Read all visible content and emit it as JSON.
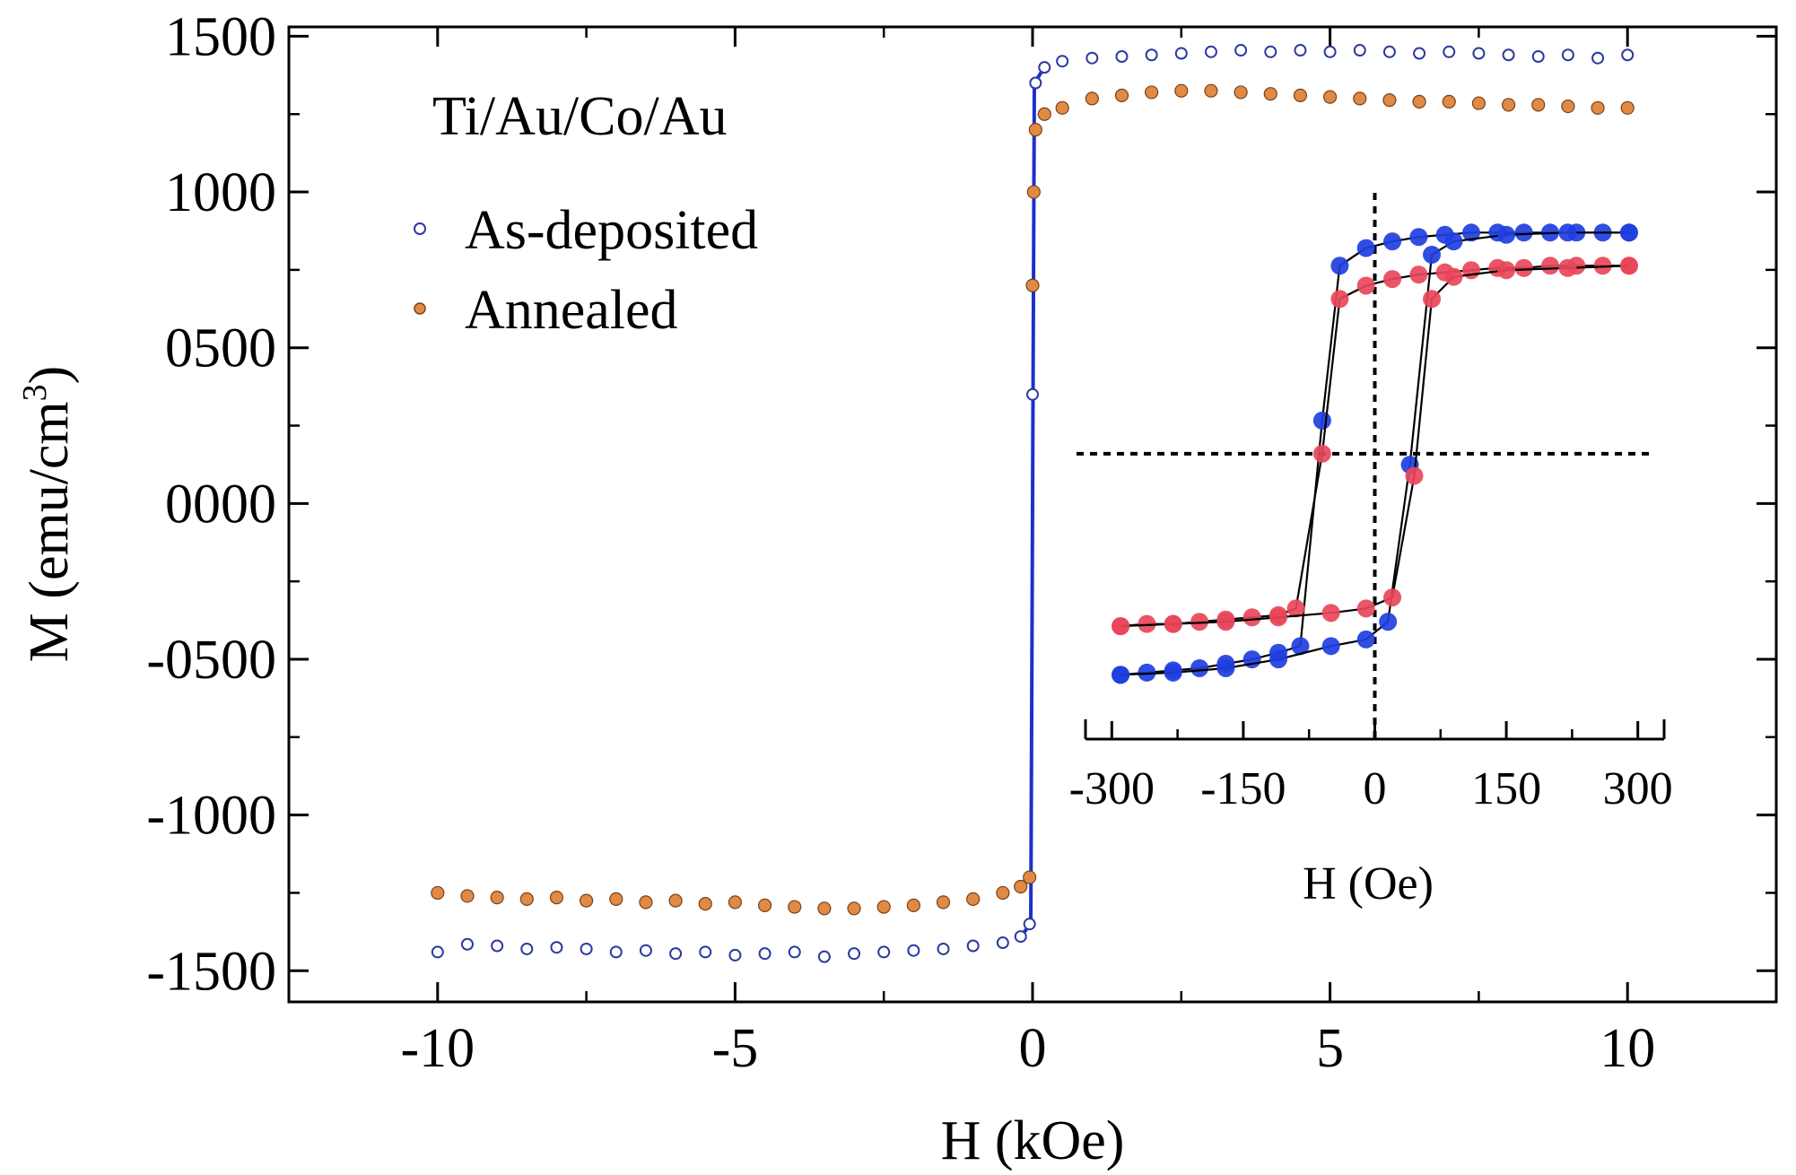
{
  "chart_data": {
    "type": "scatter",
    "xlabel": "H (kOe)",
    "ylabel_main": "M (emu/cm",
    "ylabel_sup": "3",
    "ylabel_close": ")",
    "xlim": [
      -12.5,
      12.5
    ],
    "ylim": [
      -1600,
      1530
    ],
    "x_ticks": [
      -10,
      -5,
      0,
      5,
      10
    ],
    "x_tick_labels": [
      "-10",
      "-5",
      "0",
      "5",
      "10"
    ],
    "y_ticks": [
      1500,
      1000,
      500,
      0,
      -500,
      -1000,
      -1500
    ],
    "y_tick_labels": [
      "1500",
      "1000",
      "0500",
      "0000",
      "-0500",
      "-1000",
      "-1500"
    ],
    "legend": {
      "title": "Ti/Au/Co/Au",
      "placement": "top-left"
    },
    "series": [
      {
        "name": "As-deposited",
        "marker": "open-circle",
        "color": "#2c3a9e",
        "line_color": "#1c2fcf",
        "points": [
          [
            -10,
            -1440
          ],
          [
            -9.5,
            -1415
          ],
          [
            -9,
            -1420
          ],
          [
            -8.5,
            -1430
          ],
          [
            -8,
            -1425
          ],
          [
            -7.5,
            -1430
          ],
          [
            -7,
            -1440
          ],
          [
            -6.5,
            -1435
          ],
          [
            -6,
            -1445
          ],
          [
            -5.5,
            -1440
          ],
          [
            -5,
            -1450
          ],
          [
            -4.5,
            -1445
          ],
          [
            -4,
            -1440
          ],
          [
            -3.5,
            -1455
          ],
          [
            -3,
            -1445
          ],
          [
            -2.5,
            -1440
          ],
          [
            -2,
            -1435
          ],
          [
            -1.5,
            -1430
          ],
          [
            -1,
            -1420
          ],
          [
            -0.5,
            -1410
          ],
          [
            -0.2,
            -1390
          ],
          [
            -0.05,
            -1350
          ],
          [
            0,
            350
          ],
          [
            0.05,
            1350
          ],
          [
            0.2,
            1400
          ],
          [
            0.5,
            1420
          ],
          [
            1,
            1430
          ],
          [
            1.5,
            1435
          ],
          [
            2,
            1440
          ],
          [
            2.5,
            1445
          ],
          [
            3,
            1450
          ],
          [
            3.5,
            1455
          ],
          [
            4,
            1450
          ],
          [
            4.5,
            1455
          ],
          [
            5,
            1450
          ],
          [
            5.5,
            1455
          ],
          [
            6,
            1450
          ],
          [
            6.5,
            1445
          ],
          [
            7,
            1450
          ],
          [
            7.5,
            1445
          ],
          [
            8,
            1440
          ],
          [
            8.5,
            1435
          ],
          [
            9,
            1440
          ],
          [
            9.5,
            1430
          ],
          [
            10,
            1440
          ]
        ]
      },
      {
        "name": "Annealed",
        "marker": "filled-circle",
        "color": "#e08a45",
        "points": [
          [
            -10,
            -1250
          ],
          [
            -9.5,
            -1260
          ],
          [
            -9,
            -1265
          ],
          [
            -8.5,
            -1270
          ],
          [
            -8,
            -1265
          ],
          [
            -7.5,
            -1275
          ],
          [
            -7,
            -1270
          ],
          [
            -6.5,
            -1280
          ],
          [
            -6,
            -1275
          ],
          [
            -5.5,
            -1285
          ],
          [
            -5,
            -1280
          ],
          [
            -4.5,
            -1290
          ],
          [
            -4,
            -1295
          ],
          [
            -3.5,
            -1300
          ],
          [
            -3,
            -1300
          ],
          [
            -2.5,
            -1295
          ],
          [
            -2,
            -1290
          ],
          [
            -1.5,
            -1280
          ],
          [
            -1,
            -1270
          ],
          [
            -0.5,
            -1250
          ],
          [
            -0.2,
            -1230
          ],
          [
            -0.05,
            -1200
          ],
          [
            0,
            700
          ],
          [
            0.02,
            1000
          ],
          [
            0.05,
            1200
          ],
          [
            0.2,
            1250
          ],
          [
            0.5,
            1270
          ],
          [
            1,
            1300
          ],
          [
            1.5,
            1310
          ],
          [
            2,
            1320
          ],
          [
            2.5,
            1325
          ],
          [
            3,
            1325
          ],
          [
            3.5,
            1320
          ],
          [
            4,
            1315
          ],
          [
            4.5,
            1310
          ],
          [
            5,
            1305
          ],
          [
            5.5,
            1300
          ],
          [
            6,
            1295
          ],
          [
            6.5,
            1290
          ],
          [
            7,
            1290
          ],
          [
            7.5,
            1285
          ],
          [
            8,
            1280
          ],
          [
            8.5,
            1280
          ],
          [
            9,
            1275
          ],
          [
            9.5,
            1270
          ],
          [
            10,
            1270
          ]
        ]
      }
    ],
    "inset": {
      "xlabel": "H (Oe)",
      "xlim": [
        -330,
        330
      ],
      "x_ticks": [
        -300,
        -150,
        0,
        150,
        300
      ],
      "x_tick_labels": [
        "-300",
        "-150",
        "0",
        "150",
        "300"
      ],
      "ylim": [
        -1.25,
        1.2
      ],
      "series": [
        {
          "color": "#1f3fe0",
          "upper": [
            [
              -290,
              -1.0
            ],
            [
              -260,
              -0.99
            ],
            [
              -230,
              -0.98
            ],
            [
              -200,
              -0.97
            ],
            [
              -170,
              -0.95
            ],
            [
              -140,
              -0.93
            ],
            [
              -110,
              -0.9
            ],
            [
              -85,
              -0.87
            ],
            [
              -60,
              0.15
            ],
            [
              -40,
              0.85
            ],
            [
              -10,
              0.93
            ],
            [
              20,
              0.96
            ],
            [
              50,
              0.98
            ],
            [
              80,
              0.99
            ],
            [
              110,
              1.0
            ],
            [
              140,
              1.0
            ],
            [
              170,
              1.0
            ],
            [
              200,
              1.0
            ],
            [
              230,
              1.0
            ],
            [
              260,
              1.0
            ],
            [
              290,
              1.0
            ]
          ],
          "lower": [
            [
              -290,
              -1.0
            ],
            [
              -230,
              -0.99
            ],
            [
              -170,
              -0.97
            ],
            [
              -110,
              -0.93
            ],
            [
              -50,
              -0.87
            ],
            [
              -10,
              -0.84
            ],
            [
              15,
              -0.76
            ],
            [
              40,
              -0.05
            ],
            [
              65,
              0.9
            ],
            [
              90,
              0.96
            ],
            [
              150,
              0.99
            ],
            [
              220,
              1.0
            ],
            [
              290,
              1.0
            ]
          ]
        },
        {
          "color": "#e8475a",
          "upper": [
            [
              -290,
              -0.78
            ],
            [
              -260,
              -0.77
            ],
            [
              -230,
              -0.77
            ],
            [
              -200,
              -0.76
            ],
            [
              -170,
              -0.75
            ],
            [
              -140,
              -0.74
            ],
            [
              -110,
              -0.73
            ],
            [
              -90,
              -0.7
            ],
            [
              -60,
              0.0
            ],
            [
              -40,
              0.7
            ],
            [
              -10,
              0.76
            ],
            [
              20,
              0.79
            ],
            [
              50,
              0.81
            ],
            [
              80,
              0.82
            ],
            [
              110,
              0.83
            ],
            [
              140,
              0.84
            ],
            [
              170,
              0.84
            ],
            [
              200,
              0.85
            ],
            [
              230,
              0.85
            ],
            [
              260,
              0.85
            ],
            [
              290,
              0.85
            ]
          ],
          "lower": [
            [
              -290,
              -0.78
            ],
            [
              -230,
              -0.77
            ],
            [
              -170,
              -0.76
            ],
            [
              -110,
              -0.74
            ],
            [
              -50,
              -0.72
            ],
            [
              -10,
              -0.7
            ],
            [
              20,
              -0.65
            ],
            [
              45,
              -0.1
            ],
            [
              65,
              0.7
            ],
            [
              90,
              0.8
            ],
            [
              150,
              0.83
            ],
            [
              220,
              0.84
            ],
            [
              290,
              0.85
            ]
          ]
        }
      ]
    }
  }
}
